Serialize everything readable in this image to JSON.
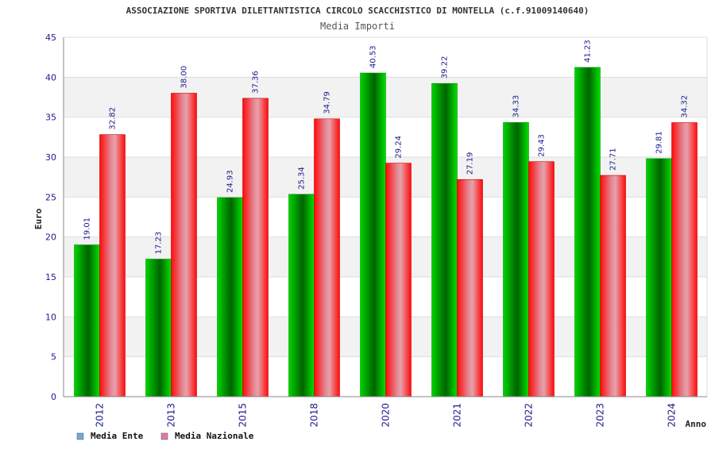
{
  "chart_data": {
    "type": "bar",
    "title": "ASSOCIAZIONE SPORTIVA DILETTANTISTICA CIRCOLO SCACCHISTICO DI MONTELLA (c.f.91009140640)",
    "subtitle": "Media Importi",
    "xlabel": "Anno",
    "ylabel": "Euro",
    "ylim": [
      0,
      45
    ],
    "yticks": [
      0,
      5,
      10,
      15,
      20,
      25,
      30,
      35,
      40,
      45
    ],
    "grid": true,
    "legend_position": "bottom-left",
    "categories": [
      "2012",
      "2013",
      "2015",
      "2018",
      "2020",
      "2021",
      "2022",
      "2023",
      "2024"
    ],
    "series": [
      {
        "name": "Media Ente",
        "legend_color": "#6fa8dc",
        "bar_color": "#00cc00",
        "values": [
          19.01,
          17.23,
          24.93,
          25.34,
          40.53,
          39.22,
          34.33,
          41.23,
          29.81
        ],
        "labels": [
          "19.01",
          "17.23",
          "24.93",
          "25.34",
          "40.53",
          "39.22",
          "34.33",
          "41.23",
          "29.81"
        ]
      },
      {
        "name": "Media Nazionale",
        "legend_color": "#e07aa8",
        "bar_color": "#ff1a1a",
        "values": [
          32.82,
          38.0,
          37.36,
          34.79,
          29.24,
          27.19,
          29.43,
          27.71,
          34.32
        ],
        "labels": [
          "32.82",
          "38.00",
          "37.36",
          "34.79",
          "29.24",
          "27.19",
          "29.43",
          "27.71",
          "34.32"
        ]
      }
    ]
  }
}
